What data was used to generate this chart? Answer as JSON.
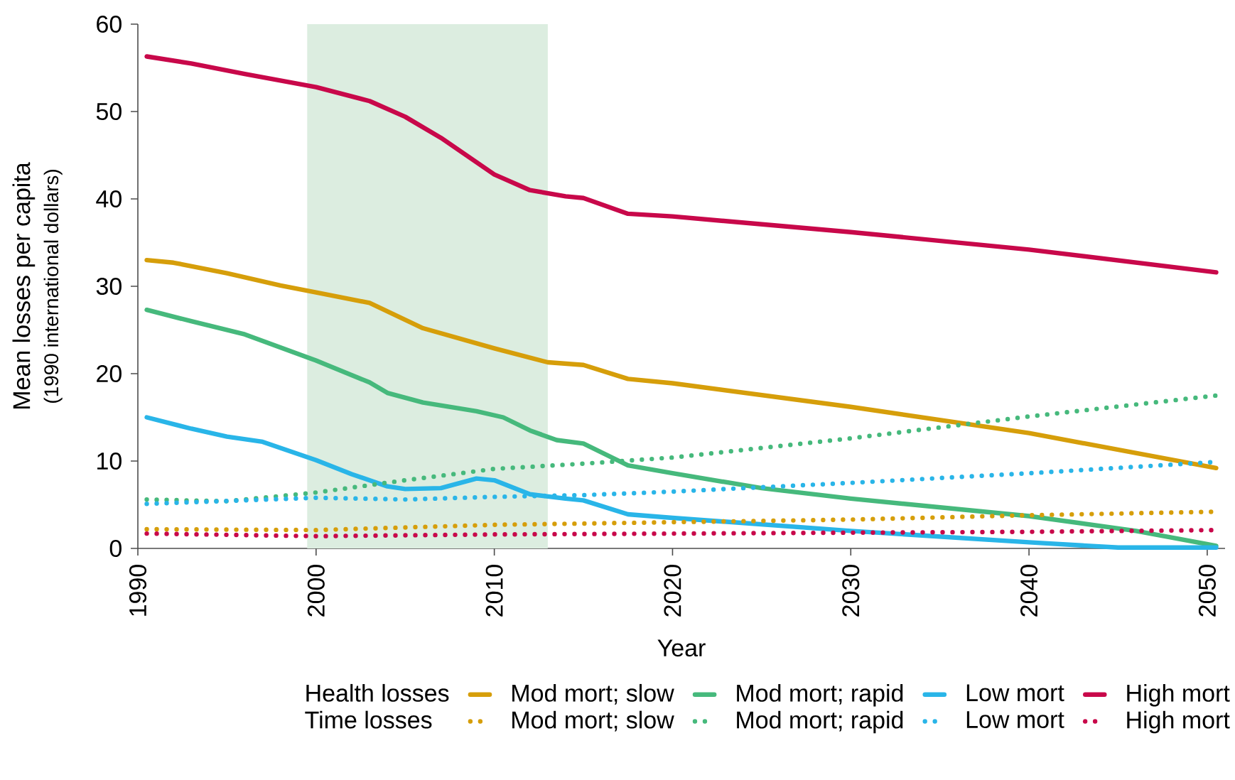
{
  "chart_data": {
    "type": "line",
    "xlabel": "Year",
    "ylabel": "Mean losses per capita",
    "annotations": [
      "Health losses",
      "Time losses",
      "(1990 international dollars)"
    ],
    "xlim": [
      1990,
      2051
    ],
    "ylim": [
      0,
      60
    ],
    "xticks": [
      1990,
      2000,
      2010,
      2020,
      2030,
      2040,
      2050
    ],
    "yticks": [
      0,
      10,
      20,
      30,
      40,
      50,
      60
    ],
    "grid": false,
    "legend": "bottom",
    "marker": "none",
    "bands": [
      {
        "axis": "x",
        "from": 1999.5,
        "to": 2013,
        "color": "#dcede0"
      }
    ],
    "series": [
      {
        "name": "Mod mort; slow",
        "color": "#d69e0a",
        "line_style": "solid",
        "x": [
          1990.5,
          1992,
          1995,
          1998,
          2000,
          2003,
          2006,
          2010,
          2013,
          2015,
          2017.5,
          2020,
          2030,
          2040,
          2050.5
        ],
        "values": [
          33.0,
          32.7,
          31.5,
          30.1,
          29.3,
          28.1,
          25.2,
          22.9,
          21.3,
          21.0,
          19.4,
          18.9,
          16.2,
          13.2,
          9.2
        ]
      },
      {
        "name": "Mod mort; rapid",
        "color": "#46b97c",
        "line_style": "solid",
        "x": [
          1990.5,
          1993,
          1996,
          2000,
          2003,
          2004,
          2006,
          2009,
          2010.5,
          2012,
          2013.5,
          2015,
          2017.5,
          2020,
          2025,
          2030,
          2040,
          2046,
          2050.5
        ],
        "values": [
          27.3,
          26.0,
          24.5,
          21.5,
          19.0,
          17.8,
          16.7,
          15.7,
          15.0,
          13.5,
          12.4,
          12.0,
          9.5,
          8.6,
          6.9,
          5.7,
          3.7,
          2.0,
          0.3
        ]
      },
      {
        "name": "Low mort",
        "color": "#29b5e8",
        "line_style": "solid",
        "x": [
          1990.5,
          1993,
          1995,
          1997,
          2000,
          2002,
          2004,
          2005,
          2007,
          2009,
          2010,
          2012,
          2014,
          2015,
          2017.5,
          2020,
          2030,
          2040,
          2045,
          2050.5
        ],
        "values": [
          15.0,
          13.7,
          12.8,
          12.2,
          10.1,
          8.5,
          7.1,
          6.8,
          6.9,
          8.0,
          7.8,
          6.2,
          5.7,
          5.5,
          3.9,
          3.5,
          2.0,
          0.7,
          0.1,
          0.1
        ]
      },
      {
        "name": "High mort",
        "color": "#c8084a",
        "line_style": "solid",
        "x": [
          1990.5,
          1993,
          1996,
          2000,
          2003,
          2005,
          2007,
          2010,
          2012,
          2014,
          2015,
          2017.5,
          2020,
          2030,
          2040,
          2050.5
        ],
        "values": [
          56.3,
          55.5,
          54.3,
          52.8,
          51.2,
          49.4,
          47.0,
          42.8,
          41.0,
          40.3,
          40.1,
          38.3,
          38.0,
          36.2,
          34.2,
          31.6
        ]
      },
      {
        "name": "Mod mort; slow",
        "color": "#d69e0a",
        "line_style": "dotted",
        "x": [
          1990.5,
          2000,
          2010,
          2020,
          2030,
          2040,
          2050.5
        ],
        "values": [
          2.2,
          2.1,
          2.7,
          3.0,
          3.3,
          3.8,
          4.2
        ]
      },
      {
        "name": "Mod mort; rapid",
        "color": "#46b97c",
        "line_style": "dotted",
        "x": [
          1990.5,
          1995,
          2000,
          2005,
          2010,
          2015,
          2020,
          2030,
          2040,
          2050.5
        ],
        "values": [
          5.6,
          5.4,
          6.4,
          7.8,
          9.1,
          9.7,
          10.4,
          12.6,
          15.1,
          17.5
        ]
      },
      {
        "name": "Low mort",
        "color": "#29b5e8",
        "line_style": "dotted",
        "x": [
          1990.5,
          2000,
          2005,
          2010,
          2015,
          2020,
          2030,
          2040,
          2050.5
        ],
        "values": [
          5.1,
          5.8,
          5.6,
          5.9,
          6.1,
          6.5,
          7.5,
          8.6,
          9.9
        ]
      },
      {
        "name": "High mort",
        "color": "#c8084a",
        "line_style": "dotted",
        "x": [
          1990.5,
          2000,
          2010,
          2020,
          2030,
          2040,
          2050.5
        ],
        "values": [
          1.7,
          1.4,
          1.6,
          1.7,
          1.8,
          1.9,
          2.1
        ]
      }
    ]
  }
}
